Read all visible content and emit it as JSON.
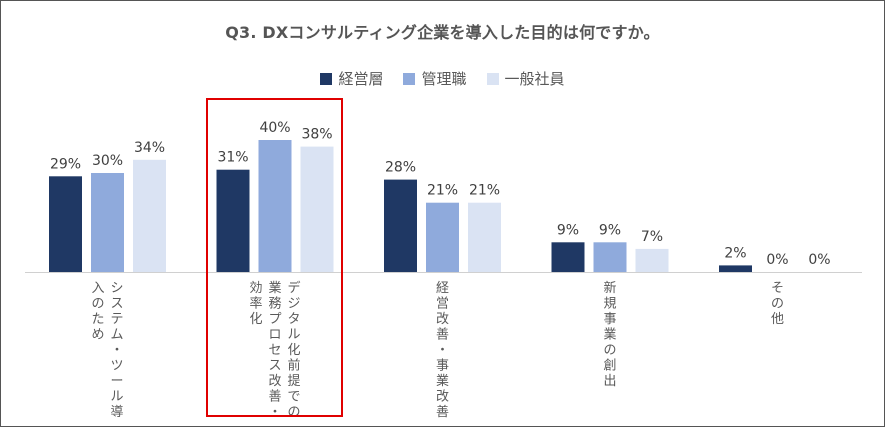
{
  "title": "Q3. DXコンサルティング企業を導入した目的は何ですか。",
  "legend": [
    {
      "label": "経営層",
      "color": "#1f3864"
    },
    {
      "label": "管理職",
      "color": "#8faadc"
    },
    {
      "label": "一般社員",
      "color": "#dae3f3"
    }
  ],
  "chart_data": {
    "type": "bar",
    "title": "Q3. DXコンサルティング企業を導入した目的は何ですか。",
    "categories": [
      "システム・ツール導入のため",
      "デジタル化前提での業務プロセス改善・効率化",
      "経営改善・事業改善",
      "新規事業の創出",
      "その他"
    ],
    "category_lines": [
      [
        "システム・ツール導",
        "入のため"
      ],
      [
        "デジタル化前提での",
        "業務プロセス改善・",
        "効率化"
      ],
      [
        "経営改善・事業改善"
      ],
      [
        "新規事業の創出"
      ],
      [
        "その他"
      ]
    ],
    "series": [
      {
        "name": "経営層",
        "values": [
          29,
          31,
          28,
          9,
          2
        ],
        "labels": [
          "29%",
          "31%",
          "28%",
          "9%",
          "2%"
        ]
      },
      {
        "name": "管理職",
        "values": [
          30,
          40,
          21,
          9,
          0
        ],
        "labels": [
          "30%",
          "40%",
          "21%",
          "9%",
          "0%"
        ]
      },
      {
        "name": "一般社員",
        "values": [
          34,
          38,
          21,
          7,
          0
        ],
        "labels": [
          "34%",
          "38%",
          "21%",
          "7%",
          "0%"
        ]
      }
    ],
    "ylim": [
      0,
      40
    ],
    "grid": false,
    "legend_position": "top",
    "highlight_category_index": 1,
    "highlight_color": "#e00000"
  }
}
